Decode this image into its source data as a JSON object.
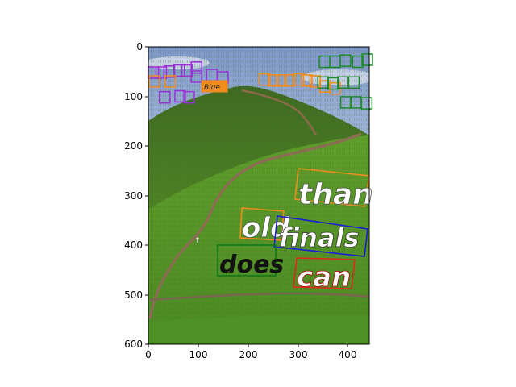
{
  "figure": {
    "type": "image-with-text-annotations",
    "x_ticks": [
      "0",
      "100",
      "200",
      "300",
      "400"
    ],
    "y_ticks": [
      "0",
      "100",
      "200",
      "300",
      "400",
      "500",
      "600"
    ],
    "xlim": [
      0,
      465
    ],
    "ylim": [
      600,
      0
    ],
    "colors": {
      "purple": "#9b30d9",
      "orange": "#f08c1c",
      "green": "#1d8a2a",
      "blue": "#1a1adc",
      "red": "#d92b1c",
      "dark_green": "#0e7a1a"
    }
  },
  "words": [
    {
      "text": "than",
      "color": "orange"
    },
    {
      "text": "old",
      "color": "orange"
    },
    {
      "text": "finals",
      "color": "blue"
    },
    {
      "text": "does",
      "color": "dark_green"
    },
    {
      "text": "can",
      "color": "red"
    },
    {
      "text": "Blue",
      "color": "orange"
    }
  ],
  "small_boxes": [
    {
      "color": "purple",
      "cx": 10,
      "cy": 52
    },
    {
      "color": "purple",
      "cx": 26,
      "cy": 52
    },
    {
      "color": "purple",
      "cx": 42,
      "cy": 50
    },
    {
      "color": "purple",
      "cx": 62,
      "cy": 48
    },
    {
      "color": "purple",
      "cx": 78,
      "cy": 48
    },
    {
      "color": "purple",
      "cx": 97,
      "cy": 42
    },
    {
      "color": "purple",
      "cx": 97,
      "cy": 60
    },
    {
      "color": "purple",
      "cx": 128,
      "cy": 57
    },
    {
      "color": "purple",
      "cx": 150,
      "cy": 62
    },
    {
      "color": "purple",
      "cx": 33,
      "cy": 102
    },
    {
      "color": "purple",
      "cx": 64,
      "cy": 100
    },
    {
      "color": "purple",
      "cx": 82,
      "cy": 102
    },
    {
      "color": "orange",
      "cx": 12,
      "cy": 70
    },
    {
      "color": "orange",
      "cx": 44,
      "cy": 70
    },
    {
      "color": "orange",
      "cx": 234,
      "cy": 66
    },
    {
      "color": "orange",
      "cx": 252,
      "cy": 68
    },
    {
      "color": "orange",
      "cx": 268,
      "cy": 68
    },
    {
      "color": "orange",
      "cx": 285,
      "cy": 68
    },
    {
      "color": "orange",
      "cx": 302,
      "cy": 66
    },
    {
      "color": "orange",
      "cx": 319,
      "cy": 68
    },
    {
      "color": "orange",
      "cx": 336,
      "cy": 70
    },
    {
      "color": "orange",
      "cx": 356,
      "cy": 80
    },
    {
      "color": "orange",
      "cx": 376,
      "cy": 84
    },
    {
      "color": "green",
      "cx": 355,
      "cy": 30
    },
    {
      "color": "green",
      "cx": 376,
      "cy": 30
    },
    {
      "color": "green",
      "cx": 397,
      "cy": 28
    },
    {
      "color": "green",
      "cx": 422,
      "cy": 30
    },
    {
      "color": "green",
      "cx": 441,
      "cy": 26
    },
    {
      "color": "green",
      "cx": 352,
      "cy": 72
    },
    {
      "color": "green",
      "cx": 372,
      "cy": 74
    },
    {
      "color": "green",
      "cx": 392,
      "cy": 72
    },
    {
      "color": "green",
      "cx": 414,
      "cy": 72
    },
    {
      "color": "green",
      "cx": 418,
      "cy": 112
    },
    {
      "color": "green",
      "cx": 440,
      "cy": 114
    },
    {
      "color": "green",
      "cx": 398,
      "cy": 112
    }
  ]
}
